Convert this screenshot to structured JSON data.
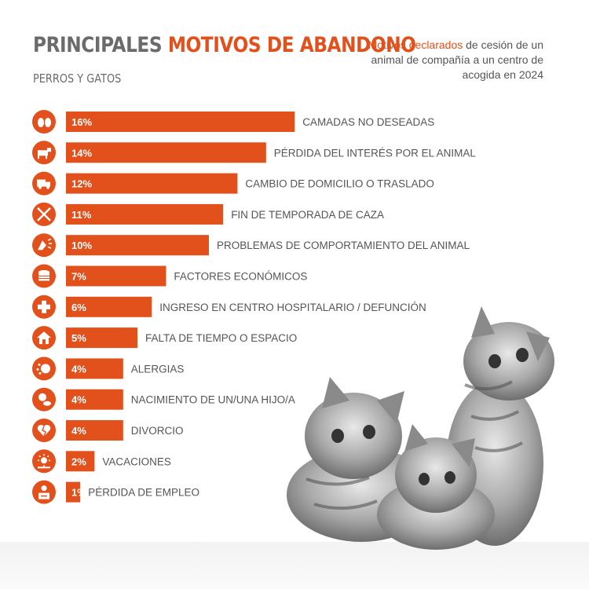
{
  "header": {
    "title_part1": "PRINCIPALES",
    "title_part2": "MOTIVOS DE ABANDONO",
    "subtitle": "PERROS Y GATOS",
    "note_highlight": "Motivos declarados",
    "note_rest": " de cesión de un animal de compañía a un centro de acogida en 2024"
  },
  "colors": {
    "accent": "#e2501c",
    "text": "#555555"
  },
  "chart_data": {
    "type": "bar",
    "orientation": "horizontal",
    "categories": [
      "CAMADAS NO DESEADAS",
      "PÉRDIDA DEL INTERÉS POR EL ANIMAL",
      "CAMBIO DE DOMICILIO O TRASLADO",
      "FIN DE TEMPORADA DE CAZA",
      "PROBLEMAS DE COMPORTAMIENTO DEL ANIMAL",
      "FACTORES ECONÓMICOS",
      "INGRESO EN CENTRO HOSPITALARIO / DEFUNCIÓN",
      "FALTA DE TIEMPO O ESPACIO",
      "ALERGIAS",
      "NACIMIENTO DE UN/UNA HIJO/A",
      "DIVORCIO",
      "VACACIONES",
      "PÉRDIDA DE EMPLEO"
    ],
    "values": [
      16,
      14,
      12,
      11,
      10,
      7,
      6,
      5,
      4,
      4,
      4,
      2,
      1
    ],
    "value_labels": [
      "16%",
      "14%",
      "12%",
      "11%",
      "10%",
      "7%",
      "6%",
      "5%",
      "4%",
      "4%",
      "4%",
      "2%",
      "1%"
    ],
    "icons": [
      "cats-icon",
      "dog-icon",
      "truck-icon",
      "crossed-rifles-icon",
      "barking-dog-icon",
      "coins-icon",
      "medical-cross-icon",
      "house-icon",
      "allergy-icon",
      "baby-icon",
      "broken-heart-icon",
      "sun-icon",
      "unemployed-icon"
    ],
    "xlim": [
      0,
      16
    ],
    "grid": false,
    "legend": "none"
  }
}
